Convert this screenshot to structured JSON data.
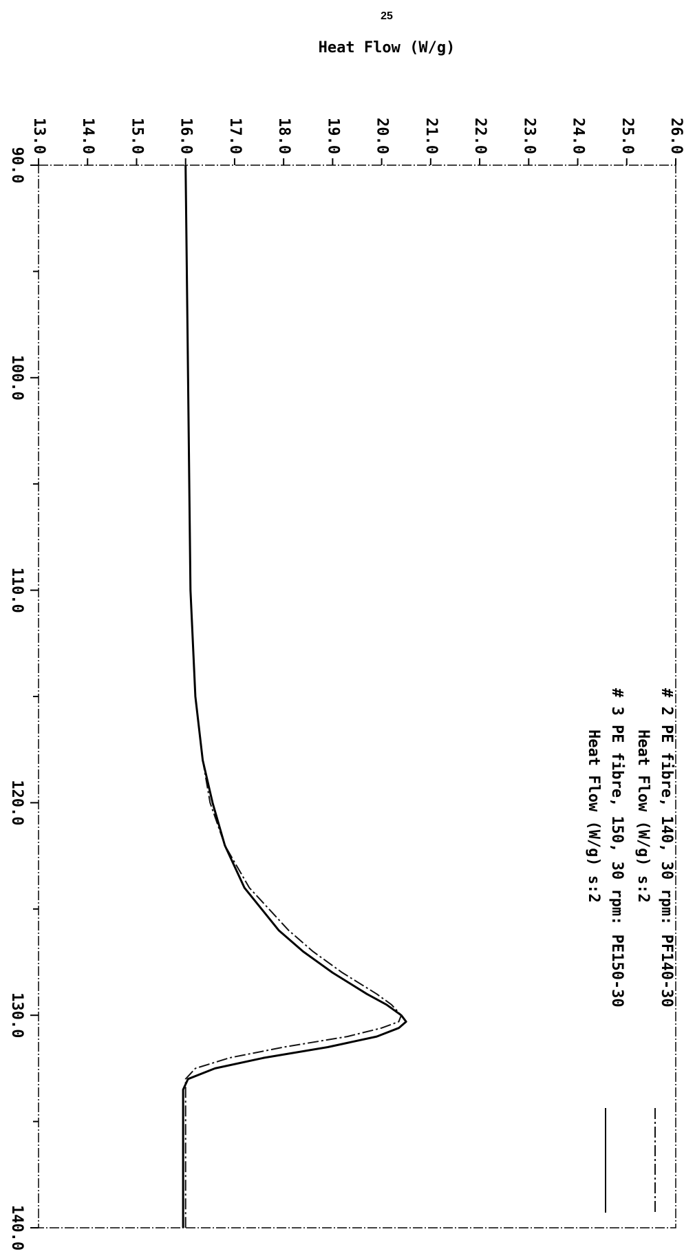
{
  "page_number": "25",
  "chart_data": {
    "type": "line",
    "title": "Heat Flow (W/g)",
    "x": [
      90,
      100,
      110,
      115,
      118,
      120,
      122,
      124,
      126,
      127,
      128,
      129,
      129.5,
      130,
      130.3,
      130.6,
      131,
      131.5,
      132,
      132.5,
      133,
      133.5,
      135,
      140
    ],
    "series": [
      {
        "name": "# 2 PE fibre, 140, 30 rpm: PF140-30",
        "sublabel": "Heat Flow (W/g)  s:2",
        "color": "#111111",
        "dash": "dashdot",
        "values": [
          16.0,
          16.05,
          16.1,
          16.2,
          16.35,
          16.5,
          16.8,
          17.3,
          18.1,
          18.6,
          19.2,
          19.9,
          20.2,
          20.4,
          20.35,
          20.0,
          19.3,
          18.0,
          16.9,
          16.2,
          16.0,
          16.0,
          16.0,
          16.0
        ]
      },
      {
        "name": "# 3 PE fibre, 150, 30 rpm: PE150-30",
        "sublabel": "Heat Flow (W/g)  s:2",
        "color": "#000000",
        "dash": "solid",
        "values": [
          16.0,
          16.05,
          16.1,
          16.2,
          16.35,
          16.55,
          16.8,
          17.2,
          17.9,
          18.4,
          19.0,
          19.7,
          20.1,
          20.4,
          20.5,
          20.35,
          19.9,
          18.9,
          17.6,
          16.6,
          16.05,
          15.95,
          15.95,
          15.95
        ]
      }
    ],
    "xlim": [
      90,
      140
    ],
    "xticks": [
      {
        "value": 90,
        "label": "90.0"
      },
      {
        "value": 100,
        "label": "100.0"
      },
      {
        "value": 110,
        "label": "110.0"
      },
      {
        "value": 120,
        "label": "120.0"
      },
      {
        "value": 130,
        "label": "130.0"
      },
      {
        "value": 140,
        "label": "140.0"
      }
    ],
    "xminorticks": [
      95,
      105,
      115,
      125,
      135
    ],
    "ylim": [
      13,
      26
    ],
    "yticks": [
      {
        "value": 13,
        "label": "13.0"
      },
      {
        "value": 14,
        "label": "14.0"
      },
      {
        "value": 15,
        "label": "15.0"
      },
      {
        "value": 16,
        "label": "16.0"
      },
      {
        "value": 17,
        "label": "17.0"
      },
      {
        "value": 18,
        "label": "18.0"
      },
      {
        "value": 19,
        "label": "19.0"
      },
      {
        "value": 20,
        "label": "20.0"
      },
      {
        "value": 21,
        "label": "21.0"
      },
      {
        "value": 22,
        "label": "22.0"
      },
      {
        "value": 23,
        "label": "23.0"
      },
      {
        "value": 24,
        "label": "24.0"
      },
      {
        "value": 25,
        "label": "25.0"
      },
      {
        "value": 26,
        "label": "26.0"
      }
    ]
  }
}
